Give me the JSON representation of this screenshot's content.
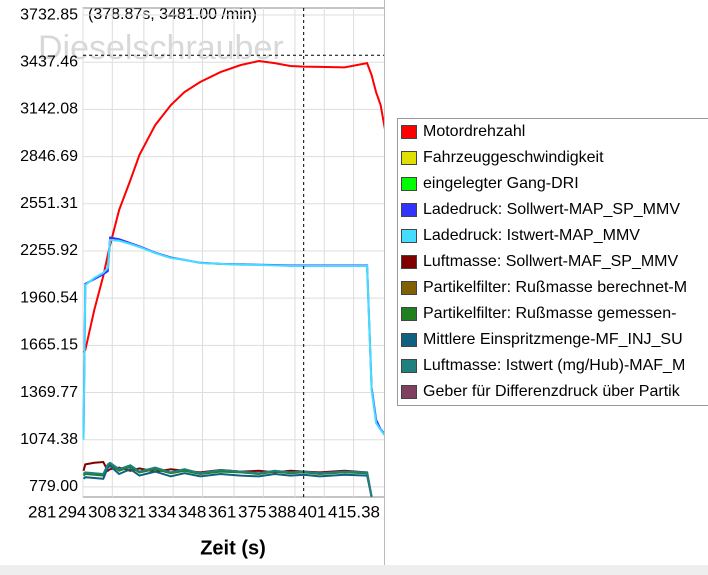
{
  "chart_data": {
    "type": "line",
    "watermark": "Dieselschrauber",
    "cursor_label": "(378.87s, 3481.00 /min)",
    "cursor": [
      378.87,
      3481
    ],
    "xlabel": "Zeit (s)",
    "xlim": [
      281,
      415.38
    ],
    "xticks": [
      281,
      294,
      308,
      321,
      334,
      348,
      361,
      375,
      388,
      401,
      415.38
    ],
    "ylim": [
      716,
      3777
    ],
    "yticks": [
      {
        "value": 779,
        "label": "779.00"
      },
      1074.38,
      1369.77,
      1665.15,
      1960.54,
      2255.92,
      2551.31,
      2846.69,
      3142.08,
      3437.46,
      3732.85
    ],
    "grid": true,
    "x": [
      281.2,
      282,
      286,
      290,
      292,
      293,
      297,
      302,
      306,
      313,
      320,
      326,
      333,
      342,
      351,
      359,
      366,
      373,
      379,
      386,
      397,
      407,
      409,
      411,
      413,
      415.38
    ],
    "series": [
      {
        "name": "Motordrehzahl",
        "color": "#ff0000",
        "values": [
          1620,
          1636,
          1887,
          2100,
          2230,
          2293,
          2512,
          2700,
          2857,
          3044,
          3170,
          3251,
          3314,
          3376,
          3420,
          3445,
          3432,
          3414,
          3410,
          3408,
          3405,
          3432,
          3357,
          3250,
          3170,
          2982
        ]
      },
      {
        "name": "Fahrzeuggeschwindigkeit",
        "color": "#e0e000",
        "values": [
          null,
          null,
          null,
          null,
          null,
          null,
          null,
          null,
          null,
          null,
          null,
          null,
          null,
          null,
          null,
          null,
          null,
          null,
          null,
          null,
          null,
          null,
          null,
          null,
          null,
          null
        ]
      },
      {
        "name": "eingelegter Gang-DRI",
        "color": "#00ff00",
        "values": [
          null,
          null,
          null,
          null,
          null,
          null,
          null,
          null,
          null,
          null,
          null,
          null,
          null,
          null,
          null,
          null,
          null,
          null,
          null,
          null,
          null,
          null,
          null,
          null,
          null,
          null
        ]
      },
      {
        "name": "Ladedruck: Sollwert-MAP_SP_MMV",
        "color": "#3333ff",
        "values": [
          1090,
          2050,
          2080,
          2110,
          2130,
          2340,
          2330,
          2305,
          2285,
          2245,
          2215,
          2200,
          2182,
          2175,
          2172,
          2170,
          2168,
          2165,
          2165,
          2165,
          2165,
          2165,
          1400,
          1200,
          1140,
          1100
        ]
      },
      {
        "name": "Ladedruck: Istwert-MAP_MMV",
        "color": "#44ddff",
        "values": [
          1074,
          2043,
          2087,
          2120,
          2150,
          2325,
          2320,
          2300,
          2281,
          2243,
          2212,
          2200,
          2181,
          2175,
          2170,
          2168,
          2166,
          2162,
          2162,
          2162,
          2162,
          2162,
          1386,
          1180,
          1136,
          1092
        ]
      },
      {
        "name": "Luftmasse: Sollwert-MAF_SP_MMV",
        "color": "#800000",
        "values": [
          880,
          920,
          930,
          935,
          880,
          890,
          900,
          880,
          895,
          875,
          890,
          880,
          870,
          885,
          875,
          880,
          870,
          880,
          875,
          870,
          880,
          870,
          716,
          null,
          null,
          null
        ]
      },
      {
        "name": "Partikelfilter: Rußmasse berechnet-M",
        "color": "#806000",
        "values": [
          null,
          null,
          null,
          null,
          null,
          null,
          null,
          null,
          null,
          null,
          null,
          null,
          null,
          null,
          null,
          null,
          null,
          null,
          null,
          null,
          null,
          null,
          null,
          null,
          null,
          null
        ]
      },
      {
        "name": "Partikelfilter: Rußmasse gemessen-",
        "color": "#208020",
        "values": [
          850,
          860,
          855,
          850,
          910,
          920,
          880,
          905,
          870,
          890,
          865,
          880,
          860,
          875,
          870,
          860,
          875,
          865,
          870,
          860,
          870,
          865,
          716,
          null,
          null,
          null
        ]
      },
      {
        "name": "Mittlere Einspritzmenge-MF_INJ_SU",
        "color": "#106080",
        "values": [
          830,
          840,
          835,
          830,
          900,
          910,
          860,
          890,
          850,
          875,
          845,
          865,
          845,
          860,
          850,
          845,
          860,
          850,
          855,
          845,
          855,
          850,
          716,
          null,
          null,
          null
        ]
      },
      {
        "name": "Luftmasse: Istwert (mg/Hub)-MAF_M",
        "color": "#208080",
        "values": [
          860,
          870,
          865,
          860,
          920,
          930,
          890,
          915,
          875,
          900,
          870,
          890,
          865,
          885,
          875,
          865,
          880,
          870,
          875,
          865,
          875,
          870,
          716,
          null,
          null,
          null
        ]
      },
      {
        "name": "Geber für Differenzdruck über Partik",
        "color": "#804060",
        "values": [
          null,
          null,
          null,
          null,
          null,
          null,
          null,
          null,
          null,
          null,
          null,
          null,
          null,
          null,
          null,
          null,
          null,
          null,
          null,
          null,
          null,
          null,
          null,
          null,
          null,
          null
        ]
      }
    ]
  }
}
